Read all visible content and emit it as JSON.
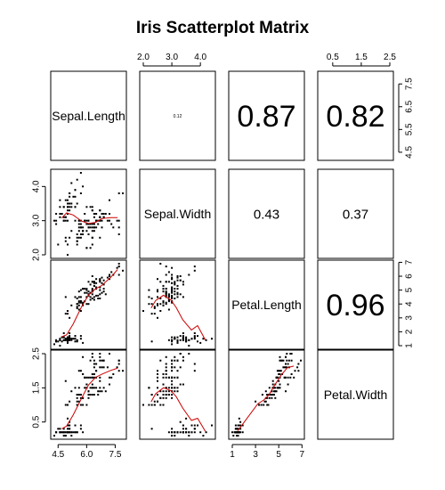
{
  "chart_data": {
    "type": "scatter",
    "title": "Iris Scatterplot Matrix",
    "variables": [
      "Sepal.Length",
      "Sepal.Width",
      "Petal.Length",
      "Petal.Width"
    ],
    "ranges": {
      "Sepal.Length": [
        4.3,
        7.9
      ],
      "Sepal.Width": [
        2.0,
        4.4
      ],
      "Petal.Length": [
        1.0,
        6.9
      ],
      "Petal.Width": [
        0.1,
        2.5
      ]
    },
    "axis_ticks": {
      "Sepal.Length": [
        "4.5",
        "5.5",
        "6.5",
        "7.5"
      ],
      "Sepal.Length_bottom": [
        "4.5",
        "6.0",
        "7.5"
      ],
      "Sepal.Width": [
        "2.0",
        "3.0",
        "4.0"
      ],
      "Petal.Length": [
        "1",
        "2",
        "3",
        "4",
        "5",
        "6",
        "7"
      ],
      "Petal.Length_bottom": [
        "1",
        "3",
        "5",
        "7"
      ],
      "Petal.Width": [
        "0.5",
        "1.5",
        "2.5"
      ],
      "Petal.Width_top": [
        "0.5",
        "1.5",
        "2.5"
      ]
    },
    "diagonal_note": "0.12",
    "correlations": [
      {
        "row": 0,
        "col": 2,
        "value": "0.87",
        "size": "large"
      },
      {
        "row": 0,
        "col": 3,
        "value": "0.82",
        "size": "large"
      },
      {
        "row": 1,
        "col": 2,
        "value": "0.43",
        "size": "small"
      },
      {
        "row": 1,
        "col": 3,
        "value": "0.37",
        "size": "small"
      },
      {
        "row": 2,
        "col": 3,
        "value": "0.96",
        "size": "large"
      }
    ],
    "smoother_color": "#cc0000",
    "point_color": "#000000",
    "observations": [
      [
        5.1,
        3.5,
        1.4,
        0.2
      ],
      [
        4.9,
        3.0,
        1.4,
        0.2
      ],
      [
        4.7,
        3.2,
        1.3,
        0.2
      ],
      [
        4.6,
        3.1,
        1.5,
        0.2
      ],
      [
        5.0,
        3.6,
        1.4,
        0.2
      ],
      [
        5.4,
        3.9,
        1.7,
        0.4
      ],
      [
        4.6,
        3.4,
        1.4,
        0.3
      ],
      [
        5.0,
        3.4,
        1.5,
        0.2
      ],
      [
        4.4,
        2.9,
        1.4,
        0.2
      ],
      [
        4.9,
        3.1,
        1.5,
        0.1
      ],
      [
        5.4,
        3.7,
        1.5,
        0.2
      ],
      [
        4.8,
        3.4,
        1.6,
        0.2
      ],
      [
        4.8,
        3.0,
        1.4,
        0.1
      ],
      [
        4.3,
        3.0,
        1.1,
        0.1
      ],
      [
        5.8,
        4.0,
        1.2,
        0.2
      ],
      [
        5.7,
        4.4,
        1.5,
        0.4
      ],
      [
        5.4,
        3.9,
        1.3,
        0.4
      ],
      [
        5.1,
        3.5,
        1.4,
        0.3
      ],
      [
        5.7,
        3.8,
        1.7,
        0.3
      ],
      [
        5.1,
        3.8,
        1.5,
        0.3
      ],
      [
        5.4,
        3.4,
        1.7,
        0.2
      ],
      [
        5.1,
        3.7,
        1.5,
        0.4
      ],
      [
        4.6,
        3.6,
        1.0,
        0.2
      ],
      [
        5.1,
        3.3,
        1.7,
        0.5
      ],
      [
        4.8,
        3.4,
        1.9,
        0.2
      ],
      [
        5.0,
        3.0,
        1.6,
        0.2
      ],
      [
        5.0,
        3.4,
        1.6,
        0.4
      ],
      [
        5.2,
        3.5,
        1.5,
        0.2
      ],
      [
        5.2,
        3.4,
        1.4,
        0.2
      ],
      [
        4.7,
        3.2,
        1.6,
        0.2
      ],
      [
        4.8,
        3.1,
        1.6,
        0.2
      ],
      [
        5.4,
        3.4,
        1.5,
        0.4
      ],
      [
        5.2,
        4.1,
        1.5,
        0.1
      ],
      [
        5.5,
        4.2,
        1.4,
        0.2
      ],
      [
        4.9,
        3.1,
        1.5,
        0.2
      ],
      [
        5.0,
        3.2,
        1.2,
        0.2
      ],
      [
        5.5,
        3.5,
        1.3,
        0.2
      ],
      [
        4.9,
        3.6,
        1.4,
        0.1
      ],
      [
        4.4,
        3.0,
        1.3,
        0.2
      ],
      [
        5.1,
        3.4,
        1.5,
        0.2
      ],
      [
        5.0,
        3.5,
        1.3,
        0.3
      ],
      [
        4.5,
        2.3,
        1.3,
        0.3
      ],
      [
        4.4,
        3.2,
        1.3,
        0.2
      ],
      [
        5.0,
        3.5,
        1.6,
        0.6
      ],
      [
        5.1,
        3.8,
        1.9,
        0.4
      ],
      [
        4.8,
        3.0,
        1.4,
        0.3
      ],
      [
        5.1,
        3.8,
        1.6,
        0.2
      ],
      [
        4.6,
        3.2,
        1.4,
        0.2
      ],
      [
        5.3,
        3.7,
        1.5,
        0.2
      ],
      [
        5.0,
        3.3,
        1.4,
        0.2
      ],
      [
        7.0,
        3.2,
        4.7,
        1.4
      ],
      [
        6.4,
        3.2,
        4.5,
        1.5
      ],
      [
        6.9,
        3.1,
        4.9,
        1.5
      ],
      [
        5.5,
        2.3,
        4.0,
        1.3
      ],
      [
        6.5,
        2.8,
        4.6,
        1.5
      ],
      [
        5.7,
        2.8,
        4.5,
        1.3
      ],
      [
        6.3,
        3.3,
        4.7,
        1.6
      ],
      [
        4.9,
        2.4,
        3.3,
        1.0
      ],
      [
        6.6,
        2.9,
        4.6,
        1.3
      ],
      [
        5.2,
        2.7,
        3.9,
        1.4
      ],
      [
        5.0,
        2.0,
        3.5,
        1.0
      ],
      [
        5.9,
        3.0,
        4.2,
        1.5
      ],
      [
        6.0,
        2.2,
        4.0,
        1.0
      ],
      [
        6.1,
        2.9,
        4.7,
        1.4
      ],
      [
        5.6,
        2.9,
        3.6,
        1.3
      ],
      [
        6.7,
        3.1,
        4.4,
        1.4
      ],
      [
        5.6,
        3.0,
        4.5,
        1.5
      ],
      [
        5.8,
        2.7,
        4.1,
        1.0
      ],
      [
        6.2,
        2.2,
        4.5,
        1.5
      ],
      [
        5.6,
        2.5,
        3.9,
        1.1
      ],
      [
        5.9,
        3.2,
        4.8,
        1.8
      ],
      [
        6.1,
        2.8,
        4.0,
        1.3
      ],
      [
        6.3,
        2.5,
        4.9,
        1.5
      ],
      [
        6.1,
        2.8,
        4.7,
        1.2
      ],
      [
        6.4,
        2.9,
        4.3,
        1.3
      ],
      [
        6.6,
        3.0,
        4.4,
        1.4
      ],
      [
        6.8,
        2.8,
        4.8,
        1.4
      ],
      [
        6.7,
        3.0,
        5.0,
        1.7
      ],
      [
        6.0,
        2.9,
        4.5,
        1.5
      ],
      [
        5.7,
        2.6,
        3.5,
        1.0
      ],
      [
        5.5,
        2.4,
        3.8,
        1.1
      ],
      [
        5.5,
        2.4,
        3.7,
        1.0
      ],
      [
        5.8,
        2.7,
        3.9,
        1.2
      ],
      [
        6.0,
        2.7,
        5.1,
        1.6
      ],
      [
        5.4,
        3.0,
        4.5,
        1.5
      ],
      [
        6.0,
        3.4,
        4.5,
        1.6
      ],
      [
        6.7,
        3.1,
        4.7,
        1.5
      ],
      [
        6.3,
        2.3,
        4.4,
        1.3
      ],
      [
        5.6,
        3.0,
        4.1,
        1.3
      ],
      [
        5.5,
        2.5,
        4.0,
        1.3
      ],
      [
        5.5,
        2.6,
        4.4,
        1.2
      ],
      [
        6.1,
        3.0,
        4.6,
        1.4
      ],
      [
        5.8,
        2.6,
        4.0,
        1.2
      ],
      [
        5.0,
        2.3,
        3.3,
        1.0
      ],
      [
        5.6,
        2.7,
        4.2,
        1.3
      ],
      [
        5.7,
        3.0,
        4.2,
        1.2
      ],
      [
        5.7,
        2.9,
        4.2,
        1.3
      ],
      [
        6.2,
        2.9,
        4.3,
        1.3
      ],
      [
        5.1,
        2.5,
        3.0,
        1.1
      ],
      [
        5.7,
        2.8,
        4.1,
        1.3
      ],
      [
        6.3,
        3.3,
        6.0,
        2.5
      ],
      [
        5.8,
        2.7,
        5.1,
        1.9
      ],
      [
        7.1,
        3.0,
        5.9,
        2.1
      ],
      [
        6.3,
        2.9,
        5.6,
        1.8
      ],
      [
        6.5,
        3.0,
        5.8,
        2.2
      ],
      [
        7.6,
        3.0,
        6.6,
        2.1
      ],
      [
        4.9,
        2.5,
        4.5,
        1.7
      ],
      [
        7.3,
        2.9,
        6.3,
        1.8
      ],
      [
        6.7,
        2.5,
        5.8,
        1.8
      ],
      [
        7.2,
        3.6,
        6.1,
        2.5
      ],
      [
        6.5,
        3.2,
        5.1,
        2.0
      ],
      [
        6.4,
        2.7,
        5.3,
        1.9
      ],
      [
        6.8,
        3.0,
        5.5,
        2.1
      ],
      [
        5.7,
        2.5,
        5.0,
        2.0
      ],
      [
        5.8,
        2.8,
        5.1,
        2.4
      ],
      [
        6.4,
        3.2,
        5.3,
        2.3
      ],
      [
        6.5,
        3.0,
        5.5,
        1.8
      ],
      [
        7.7,
        3.8,
        6.7,
        2.2
      ],
      [
        7.7,
        2.6,
        6.9,
        2.3
      ],
      [
        6.0,
        2.2,
        5.0,
        1.5
      ],
      [
        6.9,
        3.2,
        5.7,
        2.3
      ],
      [
        5.6,
        2.8,
        4.9,
        2.0
      ],
      [
        7.7,
        2.8,
        6.7,
        2.0
      ],
      [
        6.3,
        2.7,
        4.9,
        1.8
      ],
      [
        6.7,
        3.3,
        5.7,
        2.1
      ],
      [
        7.2,
        3.2,
        6.0,
        1.8
      ],
      [
        6.2,
        2.8,
        4.8,
        1.8
      ],
      [
        6.1,
        3.0,
        4.9,
        1.8
      ],
      [
        6.4,
        2.8,
        5.6,
        2.1
      ],
      [
        7.2,
        3.0,
        5.8,
        1.6
      ],
      [
        7.4,
        2.8,
        6.1,
        1.9
      ],
      [
        7.9,
        3.8,
        6.4,
        2.0
      ],
      [
        6.4,
        2.8,
        5.6,
        2.2
      ],
      [
        6.3,
        2.8,
        5.1,
        1.5
      ],
      [
        6.1,
        2.6,
        5.6,
        1.4
      ],
      [
        7.7,
        3.0,
        6.1,
        2.3
      ],
      [
        6.3,
        3.4,
        5.6,
        2.4
      ],
      [
        6.4,
        3.1,
        5.5,
        1.8
      ],
      [
        6.0,
        3.0,
        4.8,
        1.8
      ],
      [
        6.9,
        3.1,
        5.4,
        2.1
      ],
      [
        6.7,
        3.1,
        5.6,
        2.4
      ],
      [
        6.9,
        3.1,
        5.1,
        2.3
      ],
      [
        5.8,
        2.7,
        5.1,
        1.9
      ],
      [
        6.8,
        3.2,
        5.9,
        2.3
      ],
      [
        6.7,
        3.3,
        5.7,
        2.5
      ],
      [
        6.7,
        3.0,
        5.2,
        2.3
      ],
      [
        6.3,
        2.5,
        5.0,
        1.9
      ],
      [
        6.5,
        3.0,
        5.2,
        2.0
      ],
      [
        6.2,
        3.4,
        5.4,
        2.3
      ],
      [
        5.9,
        3.0,
        5.1,
        1.8
      ]
    ]
  }
}
